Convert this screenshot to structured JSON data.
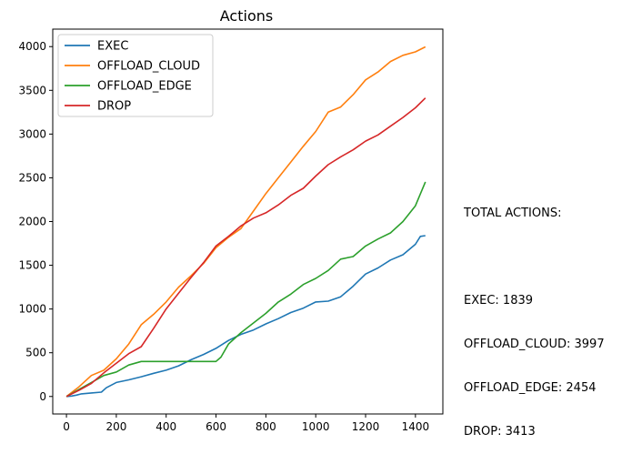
{
  "chart_data": {
    "type": "line",
    "title": "Actions",
    "xlabel": "",
    "ylabel": "",
    "xlim": [
      -55,
      1510
    ],
    "ylim": [
      -200,
      4200
    ],
    "xticks": [
      0,
      200,
      400,
      600,
      800,
      1000,
      1200,
      1400
    ],
    "yticks": [
      0,
      500,
      1000,
      1500,
      2000,
      2500,
      3000,
      3500,
      4000
    ],
    "legend_position": "top-left",
    "series": [
      {
        "name": "EXEC",
        "color": "#1f77b4",
        "x": [
          0,
          20,
          40,
          60,
          100,
          140,
          160,
          200,
          250,
          300,
          350,
          400,
          450,
          500,
          550,
          600,
          650,
          700,
          750,
          800,
          850,
          900,
          950,
          1000,
          1050,
          1100,
          1150,
          1200,
          1250,
          1300,
          1350,
          1400,
          1420,
          1440
        ],
        "y": [
          0,
          5,
          15,
          30,
          40,
          50,
          100,
          160,
          190,
          225,
          265,
          300,
          350,
          420,
          480,
          550,
          640,
          710,
          760,
          830,
          890,
          960,
          1010,
          1080,
          1090,
          1140,
          1260,
          1400,
          1470,
          1560,
          1620,
          1740,
          1830,
          1839
        ]
      },
      {
        "name": "OFFLOAD_CLOUD",
        "color": "#ff7f0e",
        "x": [
          0,
          50,
          100,
          150,
          200,
          250,
          300,
          350,
          400,
          450,
          500,
          550,
          600,
          650,
          700,
          750,
          800,
          850,
          900,
          950,
          1000,
          1050,
          1100,
          1150,
          1200,
          1250,
          1300,
          1350,
          1400,
          1440
        ],
        "y": [
          0,
          110,
          240,
          300,
          430,
          600,
          820,
          940,
          1080,
          1250,
          1380,
          1520,
          1700,
          1820,
          1920,
          2120,
          2320,
          2500,
          2680,
          2860,
          3030,
          3250,
          3310,
          3450,
          3620,
          3710,
          3830,
          3900,
          3940,
          3997
        ]
      },
      {
        "name": "OFFLOAD_EDGE",
        "color": "#2ca02c",
        "x": [
          0,
          50,
          100,
          150,
          200,
          250,
          300,
          350,
          400,
          450,
          500,
          550,
          600,
          620,
          650,
          700,
          750,
          800,
          850,
          900,
          950,
          1000,
          1050,
          1100,
          1150,
          1200,
          1250,
          1300,
          1350,
          1400,
          1440
        ],
        "y": [
          0,
          80,
          160,
          240,
          280,
          360,
          400,
          400,
          400,
          400,
          400,
          400,
          400,
          450,
          600,
          730,
          840,
          950,
          1080,
          1170,
          1280,
          1350,
          1440,
          1570,
          1600,
          1720,
          1800,
          1870,
          2000,
          2180,
          2454
        ]
      },
      {
        "name": "DROP",
        "color": "#d62728",
        "x": [
          0,
          50,
          100,
          150,
          200,
          250,
          300,
          350,
          400,
          450,
          500,
          550,
          600,
          650,
          700,
          750,
          800,
          850,
          900,
          950,
          1000,
          1050,
          1100,
          1150,
          1200,
          1250,
          1300,
          1350,
          1400,
          1440
        ],
        "y": [
          0,
          70,
          150,
          270,
          380,
          490,
          570,
          780,
          1000,
          1180,
          1360,
          1530,
          1720,
          1830,
          1950,
          2040,
          2100,
          2190,
          2300,
          2380,
          2520,
          2650,
          2740,
          2820,
          2920,
          2990,
          3090,
          3190,
          3300,
          3413
        ]
      }
    ],
    "annotation": {
      "heading": "TOTAL ACTIONS:",
      "lines": [
        "EXEC: 1839",
        "OFFLOAD_CLOUD: 3997",
        "OFFLOAD_EDGE: 2454",
        "DROP: 3413"
      ]
    }
  }
}
